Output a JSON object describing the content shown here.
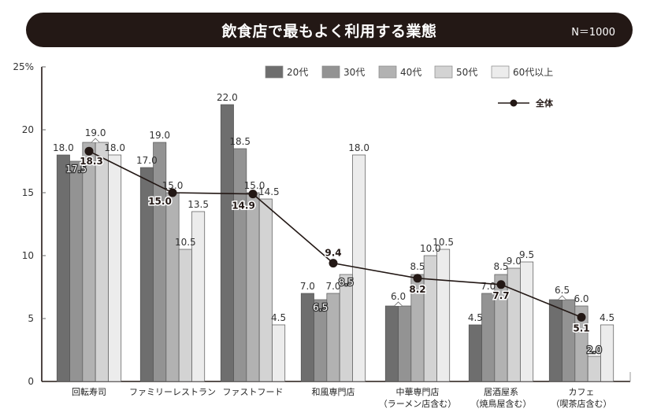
{
  "header": {
    "title": "飲食店で最もよく利用する業態",
    "sample": "N＝1000"
  },
  "colors": {
    "title_bg": "#231815",
    "series": [
      "#6e6e6e",
      "#939393",
      "#b2b2b2",
      "#d3d3d3",
      "#ececec"
    ],
    "line": "#231815"
  },
  "chart_data": {
    "type": "bar",
    "title": "飲食店で最もよく利用する業態",
    "xlabel": "",
    "ylabel": "",
    "ylim": [
      0,
      25
    ],
    "y_ticks": [
      "0",
      "5",
      "10",
      "15",
      "20",
      "25%"
    ],
    "grid": false,
    "legend_position": "top-right",
    "categories": [
      [
        "回転寿司"
      ],
      [
        "ファミリーレストラン"
      ],
      [
        "ファストフード"
      ],
      [
        "和風専門店"
      ],
      [
        "中華専門店",
        "（ラーメン店含む）"
      ],
      [
        "居酒屋系",
        "（焼鳥屋含む）"
      ],
      [
        "カフェ",
        "（喫茶店含む）"
      ]
    ],
    "series": [
      {
        "name": "20代",
        "values": [
          18.0,
          17.0,
          22.0,
          7.0,
          6.0,
          4.5,
          6.5
        ]
      },
      {
        "name": "30代",
        "values": [
          17.5,
          19.0,
          18.5,
          6.5,
          6.0,
          7.0,
          6.5
        ]
      },
      {
        "name": "40代",
        "values": [
          19.0,
          15.0,
          15.0,
          7.0,
          8.5,
          8.5,
          6.0
        ]
      },
      {
        "name": "50代",
        "values": [
          19.0,
          10.5,
          14.5,
          8.5,
          10.0,
          9.0,
          2.0
        ]
      },
      {
        "name": "60代以上",
        "values": [
          18.0,
          13.5,
          4.5,
          18.0,
          10.5,
          9.5,
          4.5
        ]
      }
    ],
    "bar_labels": [
      [
        "18.0",
        "17.5",
        "19.0",
        null,
        "18.0"
      ],
      [
        "17.0",
        "19.0",
        "15.0",
        "10.5",
        "13.5"
      ],
      [
        "22.0",
        "18.5",
        "15.0",
        "14.5",
        "4.5"
      ],
      [
        "7.0",
        "6.5",
        "7.0",
        "8.5",
        "18.0"
      ],
      [
        "6.0",
        null,
        "8.5",
        "10.0",
        "10.5"
      ],
      [
        "4.5",
        "7.0",
        "8.5",
        "9.0",
        "9.5"
      ],
      [
        "6.5",
        null,
        "6.0",
        "2.0",
        "4.5"
      ]
    ],
    "line_series": {
      "name": "全体",
      "values": [
        18.3,
        15.0,
        14.9,
        9.4,
        8.2,
        7.7,
        5.1
      ],
      "labels": [
        "18.3",
        "15.0",
        "14.9",
        "9.4",
        "8.2",
        "7.7",
        "5.1"
      ]
    }
  }
}
